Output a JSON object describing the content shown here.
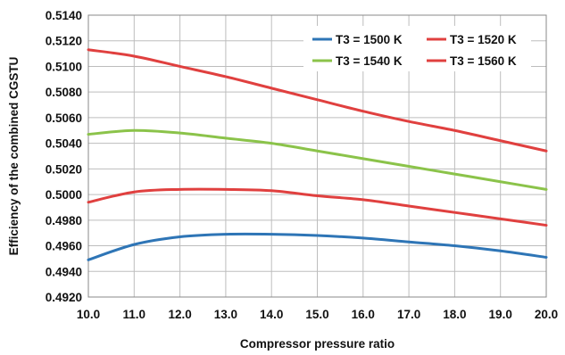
{
  "chart_data": {
    "type": "line",
    "title": "",
    "xlabel": "Compressor pressure ratio",
    "ylabel": "Efficiency of the combined CGSTU",
    "xlim": [
      10.0,
      20.0
    ],
    "ylim": [
      0.492,
      0.514
    ],
    "x_ticks": [
      "10.0",
      "11.0",
      "12.0",
      "13.0",
      "14.0",
      "15.0",
      "16.0",
      "17.0",
      "18.0",
      "19.0",
      "20.0"
    ],
    "y_ticks": [
      "0.4920",
      "0.4940",
      "0.4960",
      "0.4980",
      "0.5000",
      "0.5020",
      "0.5040",
      "0.5060",
      "0.5080",
      "0.5100",
      "0.5120",
      "0.5140"
    ],
    "grid": true,
    "legend_position": "top-right",
    "x": [
      10,
      11,
      12,
      13,
      14,
      15,
      16,
      17,
      18,
      19,
      20
    ],
    "series": [
      {
        "name": "T3 = 1500 K",
        "color": "#2e75b6",
        "values": [
          0.4949,
          0.4961,
          0.4967,
          0.4969,
          0.4969,
          0.4968,
          0.4966,
          0.4963,
          0.496,
          0.4956,
          0.4951
        ]
      },
      {
        "name": "T3 = 1520 K",
        "color": "#e0403f",
        "values": [
          0.4994,
          0.5002,
          0.5004,
          0.5004,
          0.5003,
          0.4999,
          0.4996,
          0.4991,
          0.4986,
          0.4981,
          0.4976
        ]
      },
      {
        "name": "T3 = 1540 K",
        "color": "#8bc34a",
        "values": [
          0.5047,
          0.505,
          0.5048,
          0.5044,
          0.504,
          0.5034,
          0.5028,
          0.5022,
          0.5016,
          0.501,
          0.5004
        ]
      },
      {
        "name": "T3 = 1560 K",
        "color": "#e0403f",
        "values": [
          0.5113,
          0.5108,
          0.51,
          0.5092,
          0.5083,
          0.5074,
          0.5065,
          0.5057,
          0.505,
          0.5042,
          0.5034
        ]
      }
    ]
  }
}
